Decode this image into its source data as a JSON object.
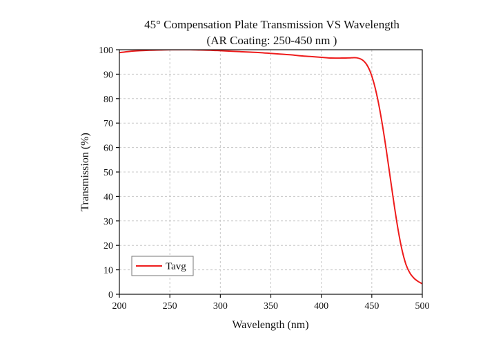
{
  "chart_data": {
    "type": "line",
    "title": "45° Compensation Plate Transmission VS Wavelength",
    "subtitle": "(AR Coating: 250-450 nm )",
    "xlabel": "Wavelength (nm)",
    "ylabel": "Transmission (%)",
    "xlim": [
      200,
      500
    ],
    "ylim": [
      0,
      100
    ],
    "x_ticks": [
      200,
      250,
      300,
      350,
      400,
      450,
      500
    ],
    "y_ticks": [
      0,
      10,
      20,
      30,
      40,
      50,
      60,
      70,
      80,
      90,
      100
    ],
    "grid": true,
    "legend_position": "bottom-left",
    "series": [
      {
        "name": "Tavg",
        "color": "#ee1c1c",
        "x": [
          200,
          210,
          220,
          230,
          240,
          250,
          260,
          270,
          280,
          290,
          300,
          310,
          320,
          330,
          340,
          350,
          360,
          370,
          380,
          390,
          400,
          410,
          420,
          430,
          435,
          440,
          444,
          448,
          452,
          456,
          460,
          464,
          468,
          472,
          476,
          480,
          484,
          488,
          492,
          496,
          500
        ],
        "y": [
          98.8,
          99.3,
          99.6,
          99.8,
          99.9,
          100.0,
          100.0,
          100.0,
          99.9,
          99.8,
          99.6,
          99.4,
          99.2,
          99.0,
          98.8,
          98.5,
          98.2,
          97.9,
          97.5,
          97.2,
          96.9,
          96.6,
          96.6,
          96.7,
          96.7,
          96.0,
          94.5,
          91.5,
          86.5,
          79.5,
          70.5,
          60.0,
          48.5,
          37.0,
          26.5,
          18.0,
          12.0,
          8.5,
          6.5,
          5.2,
          4.3
        ]
      }
    ]
  }
}
